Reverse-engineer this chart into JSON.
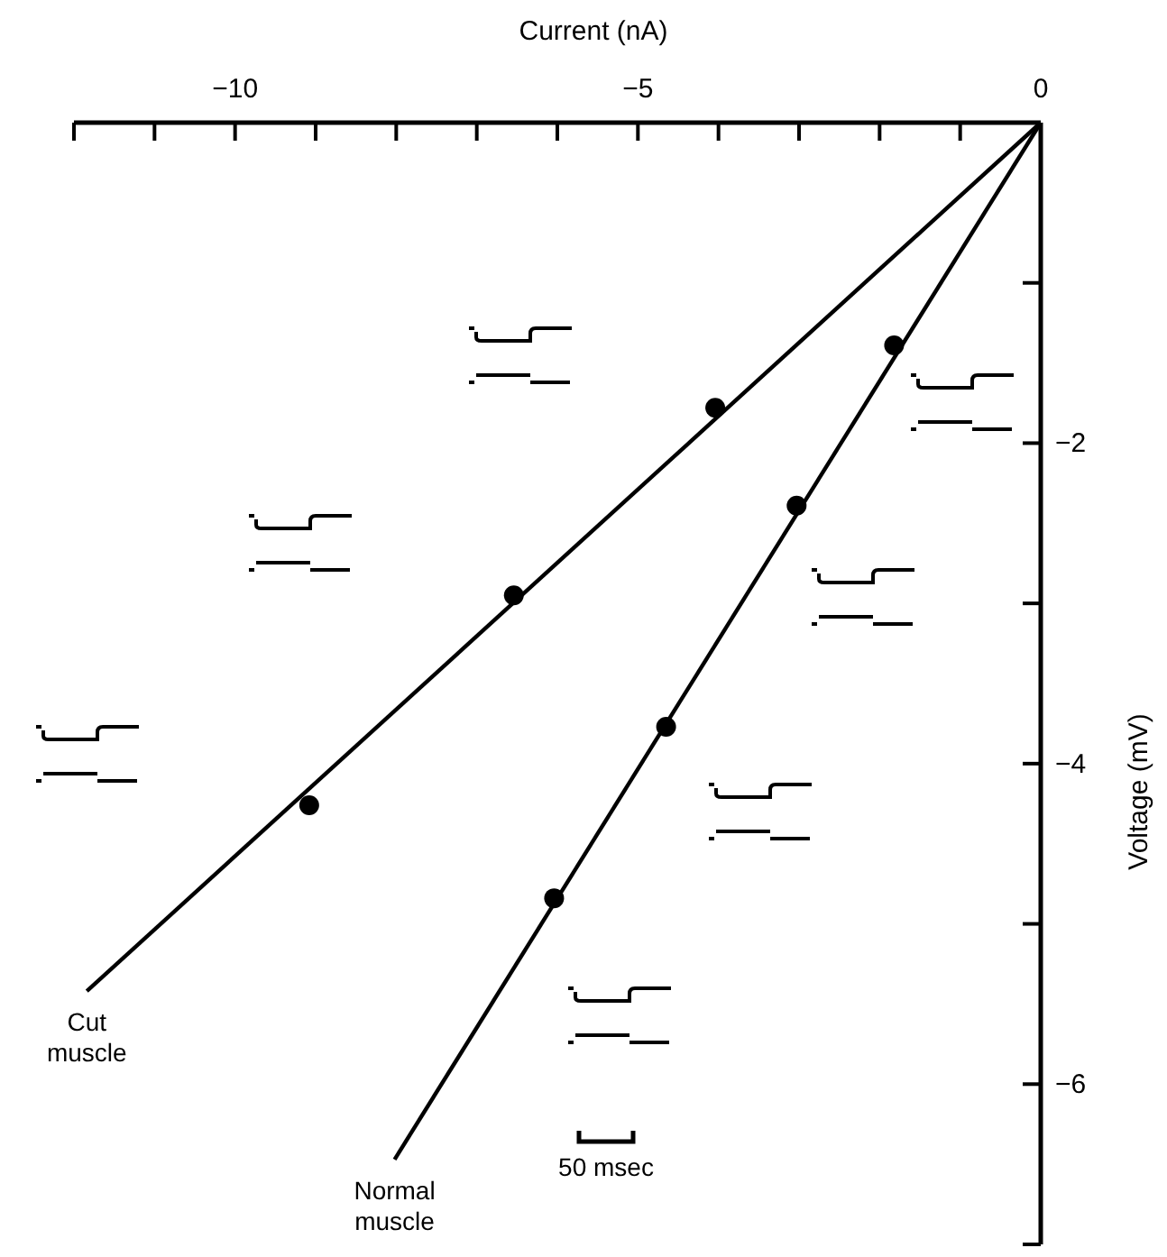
{
  "chart_data": {
    "type": "line",
    "xlabel": "Current (nA)",
    "ylabel": "Voltage (mV)",
    "xlim": [
      -12,
      0
    ],
    "ylim": [
      -7,
      0
    ],
    "xticks": [
      {
        "value": -12,
        "label": null
      },
      {
        "value": -11,
        "label": null
      },
      -10,
      {
        "value": -9,
        "label": null
      },
      {
        "value": -8,
        "label": null
      },
      {
        "value": -7,
        "label": null
      },
      {
        "value": -6,
        "label": null
      },
      -5,
      {
        "value": -4,
        "label": null
      },
      {
        "value": -3,
        "label": null
      },
      {
        "value": -2,
        "label": null
      },
      {
        "value": -1,
        "label": null
      },
      0
    ],
    "yticks": [
      {
        "value": -1,
        "label": null
      },
      -2,
      {
        "value": -3,
        "label": null
      },
      -4,
      {
        "value": -5,
        "label": null
      },
      -6,
      {
        "value": -7,
        "label": null
      }
    ],
    "grid": false,
    "series": [
      {
        "name": "Cut muscle",
        "color": "#000000",
        "x": [
          0,
          -11.84
        ],
        "values": [
          0,
          -5.42
        ],
        "marker": "none"
      },
      {
        "name": "Normal muscle",
        "color": "#000000",
        "x": [
          0,
          -8.02
        ],
        "values": [
          0,
          -6.47
        ],
        "marker": "none"
      },
      {
        "type": "scatter",
        "color": "#000000",
        "marker": "circle",
        "x": [
          -4.04,
          -6.54,
          -9.08
        ],
        "values": [
          -1.78,
          -2.95,
          -4.26
        ]
      },
      {
        "type": "scatter",
        "color": "#000000",
        "marker": "circle",
        "x": [
          -1.82,
          -3.03,
          -4.65,
          -6.04
        ],
        "values": [
          -1.39,
          -2.39,
          -3.77,
          -4.84
        ]
      }
    ],
    "annotations": [
      "50 msec"
    ]
  }
}
